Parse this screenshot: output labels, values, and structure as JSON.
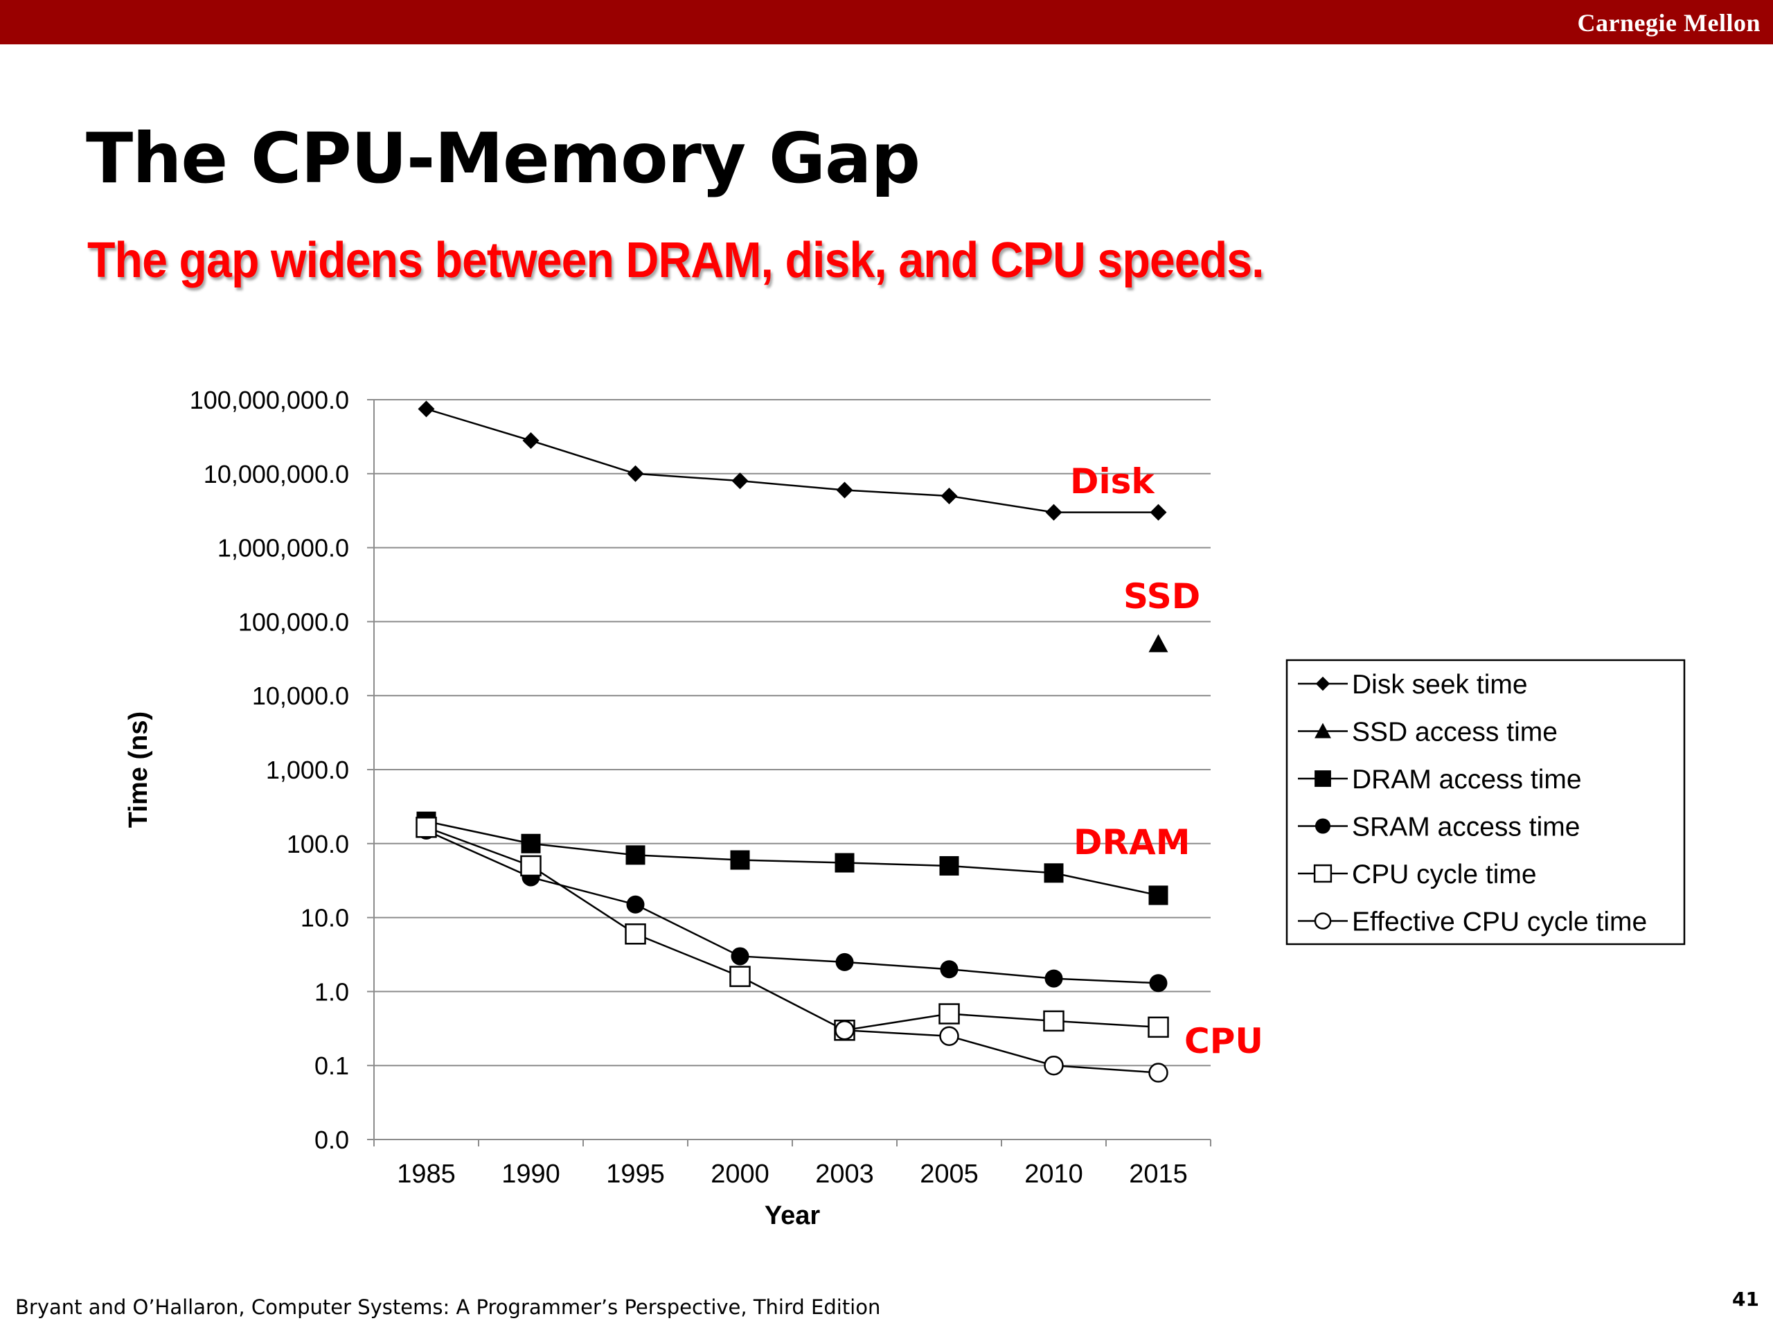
{
  "header": {
    "brand": "Carnegie Mellon"
  },
  "slide": {
    "title": "The CPU-Memory Gap",
    "subtitle": "The gap widens between DRAM, disk, and CPU speeds."
  },
  "footer": {
    "citation": "Bryant and O’Hallaron, Computer Systems: A Programmer’s Perspective, Third Edition",
    "page_number": "41"
  },
  "chart_data": {
    "type": "line",
    "title": "",
    "xlabel": "Year",
    "ylabel": "Time (ns)",
    "yscale": "log",
    "ylim": [
      0.01,
      100000000
    ],
    "y_tick_labels": [
      "100,000,000.0",
      "10,000,000.0",
      "1,000,000.0",
      "100,000.0",
      "10,000.0",
      "1,000.0",
      "100.0",
      "10.0",
      "1.0",
      "0.1",
      "0.0"
    ],
    "y_tick_values": [
      100000000,
      10000000,
      1000000,
      100000,
      10000,
      1000,
      100,
      10,
      1,
      0.1,
      0.01
    ],
    "categories": [
      "1985",
      "1990",
      "1995",
      "2000",
      "2003",
      "2005",
      "2010",
      "2015"
    ],
    "grid": "horizontal",
    "legend_position": "right",
    "series": [
      {
        "name": "Disk seek time",
        "marker": "diamond",
        "values": [
          75000000,
          28000000,
          10000000,
          8000000,
          6000000,
          5000000,
          3000000,
          3000000
        ]
      },
      {
        "name": "SSD access time",
        "marker": "triangle",
        "values": [
          null,
          null,
          null,
          null,
          null,
          null,
          null,
          50000
        ]
      },
      {
        "name": "DRAM access time",
        "marker": "square-filled",
        "values": [
          200,
          100,
          70,
          60,
          55,
          50,
          40,
          20
        ]
      },
      {
        "name": "SRAM access time",
        "marker": "circle-filled",
        "values": [
          150,
          35,
          15,
          3,
          2.5,
          2,
          1.5,
          1.3
        ]
      },
      {
        "name": "CPU cycle time",
        "marker": "square-open",
        "values": [
          166,
          50,
          6,
          1.6,
          0.3,
          0.5,
          0.4,
          0.33
        ]
      },
      {
        "name": "Effective CPU cycle time",
        "marker": "circle-open",
        "values": [
          null,
          null,
          null,
          null,
          0.3,
          0.25,
          0.1,
          0.08
        ]
      }
    ],
    "annotations": [
      {
        "text": "Disk",
        "color": "#ff0000"
      },
      {
        "text": "SSD",
        "color": "#ff0000"
      },
      {
        "text": "DRAM",
        "color": "#ff0000"
      },
      {
        "text": "CPU",
        "color": "#ff0000"
      }
    ]
  }
}
